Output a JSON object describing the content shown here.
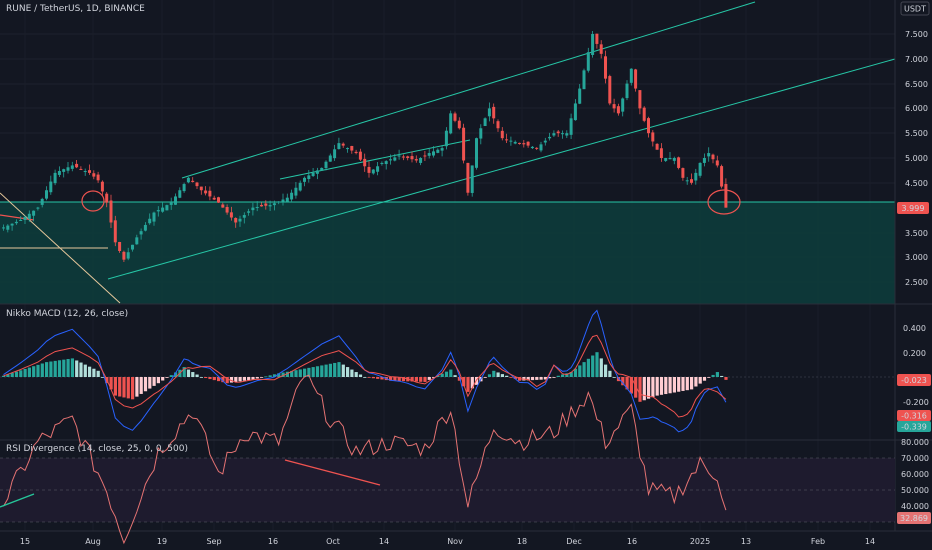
{
  "header": {
    "symbol_title": "RUNE / TetherUS, 1D, BINANCE",
    "currency_badge": "USDT"
  },
  "price_axis": {
    "ticks": [
      "7.500",
      "7.000",
      "6.500",
      "6.000",
      "5.500",
      "5.000",
      "4.500",
      "4.000",
      "3.500",
      "3.000",
      "2.500"
    ],
    "current_price_label": "3.999"
  },
  "macd_panel": {
    "title": "Nikko MACD (12, 26, close)",
    "ticks": [
      "0.400",
      "0.200",
      "0.000",
      "-0.200"
    ],
    "histogram_label": "-0.023",
    "macd_label": "-0.316",
    "signal_label": "-0.339"
  },
  "rsi_panel": {
    "title": "RSI Divergence (14, close, 25, 0, 0, 500)",
    "ticks": [
      "80.000",
      "70.000",
      "60.000",
      "50.000",
      "40.000"
    ],
    "current_label": "32.869"
  },
  "time_axis": {
    "labels": [
      "15",
      "Aug",
      "19",
      "Sep",
      "16",
      "Oct",
      "14",
      "Nov",
      "18",
      "Dec",
      "16",
      "2025",
      "13",
      "Feb",
      "14"
    ]
  },
  "colors": {
    "background": "#131722",
    "bull": "#26a69a",
    "bear": "#ef5350",
    "channel": "#26c6a6",
    "support_zone": "#0d3b3b"
  },
  "chart_data": {
    "type": "candlestick",
    "title": "RUNE / TetherUS, 1D, BINANCE",
    "ylim": [
      2.2,
      7.8
    ],
    "support_level": 4.1,
    "current_price": 3.999,
    "close_path": [
      [
        0,
        3.6
      ],
      [
        4,
        3.75
      ],
      [
        8,
        4.0
      ],
      [
        12,
        4.7
      ],
      [
        16,
        4.85
      ],
      [
        20,
        4.7
      ],
      [
        22,
        4.55
      ],
      [
        24,
        4.1
      ],
      [
        26,
        3.3
      ],
      [
        28,
        2.95
      ],
      [
        31,
        3.4
      ],
      [
        35,
        3.9
      ],
      [
        39,
        4.1
      ],
      [
        43,
        4.6
      ],
      [
        46,
        4.35
      ],
      [
        50,
        4.1
      ],
      [
        54,
        3.7
      ],
      [
        58,
        4.0
      ],
      [
        62,
        4.05
      ],
      [
        66,
        4.2
      ],
      [
        70,
        4.6
      ],
      [
        74,
        4.8
      ],
      [
        78,
        5.3
      ],
      [
        82,
        5.1
      ],
      [
        85,
        4.7
      ],
      [
        88,
        4.9
      ],
      [
        92,
        5.05
      ],
      [
        96,
        4.95
      ],
      [
        99,
        5.1
      ],
      [
        102,
        5.2
      ],
      [
        104,
        5.9
      ],
      [
        106,
        5.6
      ],
      [
        108,
        4.3
      ],
      [
        110,
        5.4
      ],
      [
        113,
        6.0
      ],
      [
        116,
        5.4
      ],
      [
        120,
        5.3
      ],
      [
        124,
        5.2
      ],
      [
        128,
        5.5
      ],
      [
        131,
        5.5
      ],
      [
        134,
        6.4
      ],
      [
        137,
        7.5
      ],
      [
        139,
        7.1
      ],
      [
        141,
        6.1
      ],
      [
        143,
        5.9
      ],
      [
        146,
        6.8
      ],
      [
        148,
        6.0
      ],
      [
        150,
        5.5
      ],
      [
        153,
        5.0
      ],
      [
        156,
        5.0
      ],
      [
        158,
        4.6
      ],
      [
        160,
        4.5
      ],
      [
        162,
        4.9
      ],
      [
        164,
        5.1
      ],
      [
        166,
        4.85
      ],
      [
        168,
        3.999
      ]
    ],
    "macd_histogram_approx": [
      [
        0,
        0.01
      ],
      [
        10,
        0.12
      ],
      [
        16,
        0.15
      ],
      [
        22,
        0.05
      ],
      [
        26,
        -0.15
      ],
      [
        30,
        -0.18
      ],
      [
        36,
        -0.05
      ],
      [
        42,
        0.08
      ],
      [
        46,
        0.0
      ],
      [
        52,
        -0.05
      ],
      [
        58,
        -0.02
      ],
      [
        64,
        0.03
      ],
      [
        72,
        0.08
      ],
      [
        78,
        0.12
      ],
      [
        84,
        0.0
      ],
      [
        90,
        -0.03
      ],
      [
        98,
        -0.04
      ],
      [
        104,
        0.06
      ],
      [
        108,
        -0.12
      ],
      [
        114,
        0.05
      ],
      [
        120,
        -0.03
      ],
      [
        126,
        -0.02
      ],
      [
        132,
        0.04
      ],
      [
        138,
        0.2
      ],
      [
        142,
        0.0
      ],
      [
        148,
        -0.2
      ],
      [
        152,
        -0.15
      ],
      [
        160,
        -0.1
      ],
      [
        166,
        0.04
      ],
      [
        168,
        -0.023
      ]
    ],
    "rsi_approx": [
      [
        0,
        36
      ],
      [
        8,
        55
      ],
      [
        16,
        62
      ],
      [
        24,
        40
      ],
      [
        28,
        25
      ],
      [
        36,
        52
      ],
      [
        44,
        65
      ],
      [
        50,
        45
      ],
      [
        56,
        58
      ],
      [
        64,
        55
      ],
      [
        70,
        76
      ],
      [
        76,
        62
      ],
      [
        82,
        52
      ],
      [
        90,
        55
      ],
      [
        98,
        53
      ],
      [
        104,
        66
      ],
      [
        108,
        35
      ],
      [
        114,
        60
      ],
      [
        120,
        55
      ],
      [
        128,
        58
      ],
      [
        136,
        70
      ],
      [
        140,
        55
      ],
      [
        146,
        65
      ],
      [
        150,
        40
      ],
      [
        156,
        38
      ],
      [
        162,
        48
      ],
      [
        166,
        45
      ],
      [
        168,
        32.869
      ]
    ]
  }
}
